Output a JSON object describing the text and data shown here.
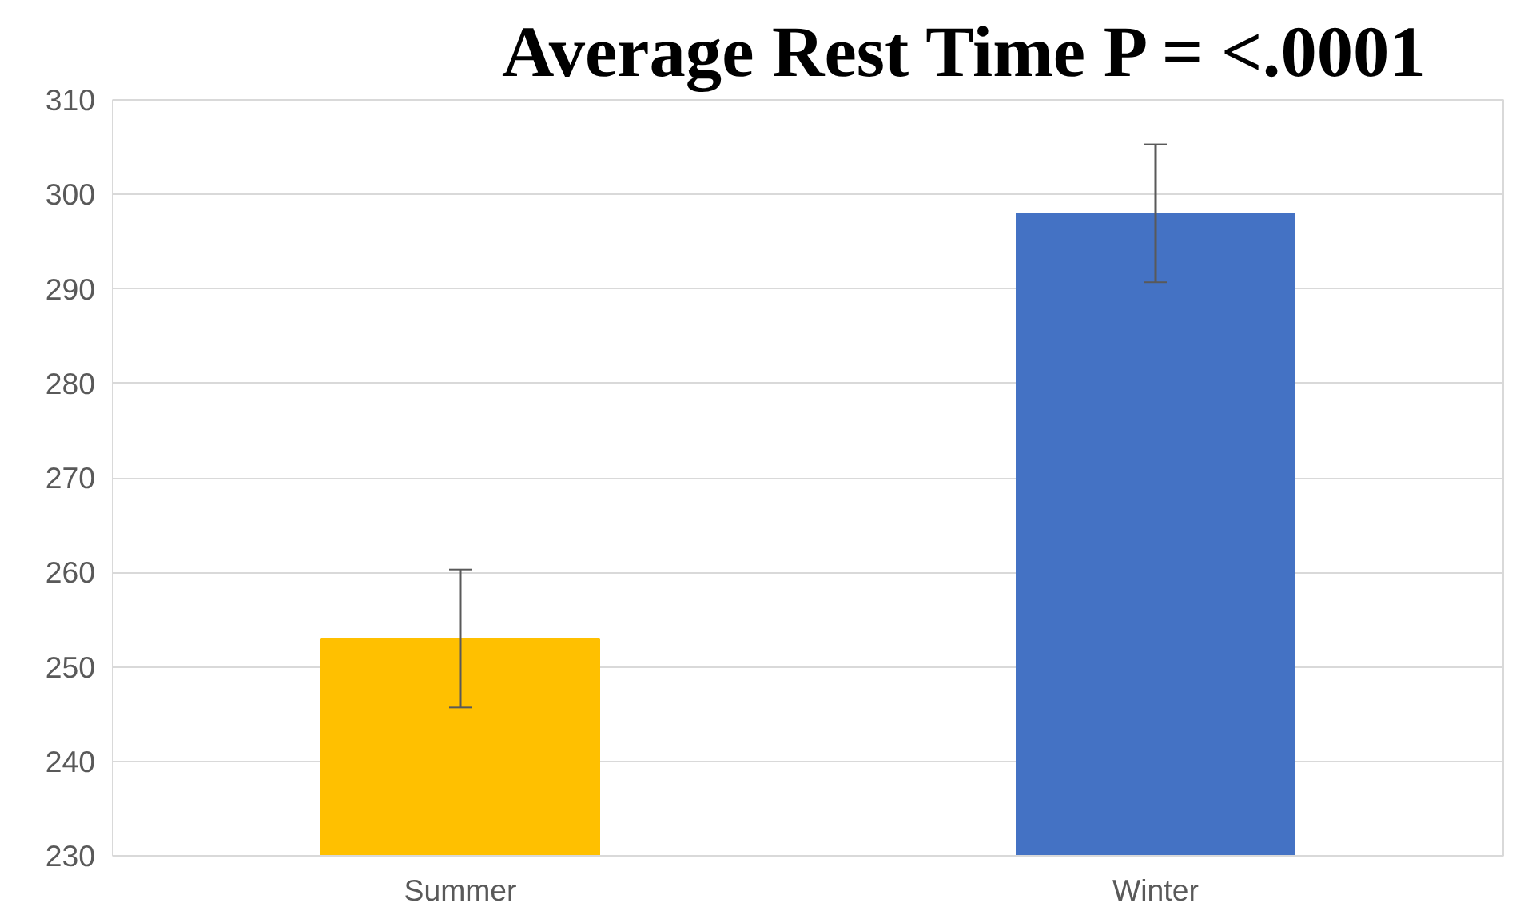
{
  "chart_data": {
    "type": "bar",
    "title": "Average Rest Time     P = <.0001",
    "categories": [
      "Summer",
      "Winter"
    ],
    "values": [
      253,
      298
    ],
    "errors": [
      7.3,
      7.3
    ],
    "colors": [
      "#ffc000",
      "#4472c4"
    ],
    "ylim": [
      230,
      310
    ],
    "yticks": [
      230,
      240,
      250,
      260,
      270,
      280,
      290,
      300,
      310
    ],
    "grid": "y"
  }
}
